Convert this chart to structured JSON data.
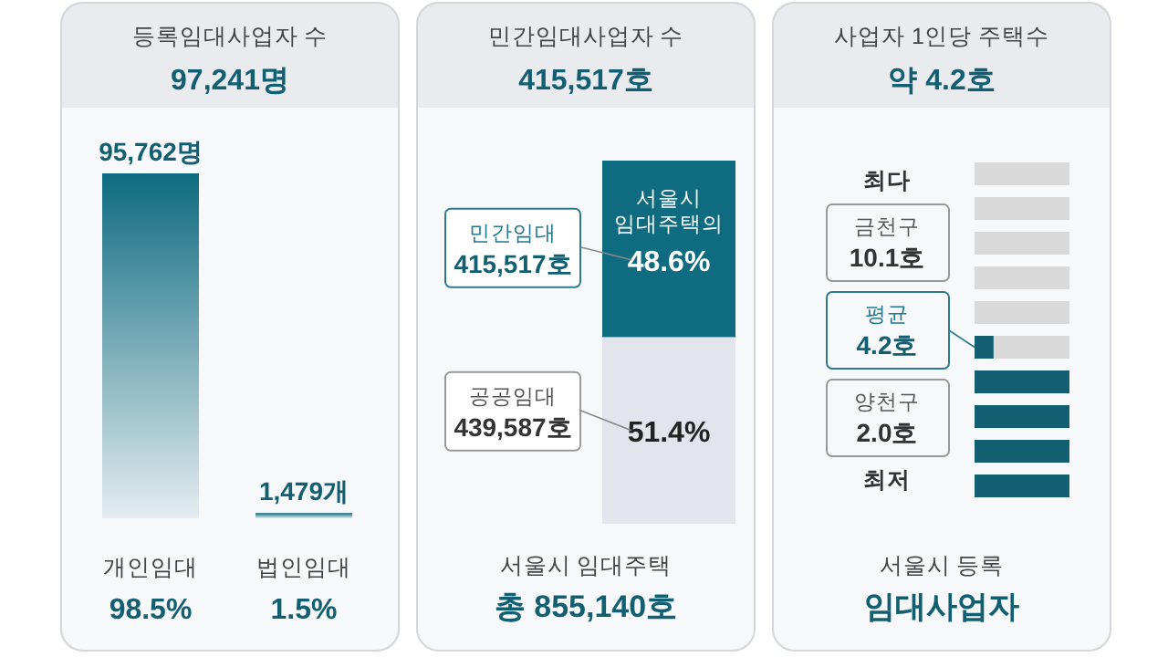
{
  "chart_data": [
    {
      "type": "bar",
      "title": "등록임대사업자 수",
      "subtitle": "97,241명",
      "categories": [
        "개인임대",
        "법인임대"
      ],
      "values": [
        95762,
        1479
      ],
      "value_labels": [
        "95,762명",
        "1,479개"
      ],
      "color": "#0e6b80",
      "annotations": [
        "98.5%",
        "1.5%"
      ]
    },
    {
      "type": "bar",
      "stacked": true,
      "title": "민간임대사업자 수",
      "subtitle": "415,517호",
      "categories": [
        null
      ],
      "series": [
        {
          "name": "공공임대",
          "color": "#e3e5ec",
          "values": [
            51.4
          ],
          "value_labels": [
            "51.4%"
          ]
        },
        {
          "name": "민간임대",
          "color": "#0e6b80",
          "values": [
            48.6
          ],
          "value_labels": [
            "서울시 임대주택의 48.6%"
          ]
        }
      ],
      "annotations": [
        "439,587호",
        "415,517호",
        "서울시 임대주택",
        "총 855,140호"
      ]
    },
    {
      "type": "other",
      "title": "사업자 1인당 주택수",
      "subtitle": "약 4.2호",
      "values": [
        4.2
      ],
      "value_labels": [
        "4.2호"
      ],
      "annotations": [
        "최다",
        "금천구",
        "10.1호",
        "평균",
        "양천구",
        "2.0호",
        "최저",
        "서울시 등록",
        "임대사업자"
      ]
    }
  ]
}
